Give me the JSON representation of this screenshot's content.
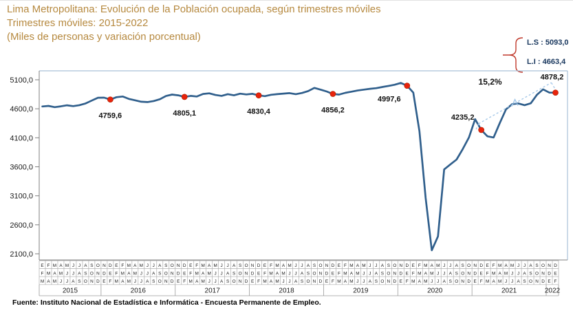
{
  "title": {
    "line1": "Lima Metropolitana: Evolución de la Población ocupada, según trimestres móviles",
    "line2": "Trimestres móviles: 2015-2022",
    "line3": "(Miles de personas y variación porcentual)"
  },
  "source": "Fuente: Instituto Nacional de Estadística e Informática - Encuesta Permanente de Empleo.",
  "chart_data": {
    "type": "line",
    "title": "Lima Metropolitana: Evolución de la Población ocupada, según trimestres móviles",
    "ylabel": "Miles de personas",
    "xlabel": "Trimestres móviles (años 2015-2022)",
    "ylim": [
      2100,
      5100
    ],
    "ytick_step": 500,
    "ytick_labels": [
      "5100,0",
      "4600,0",
      "4100,0",
      "3600,0",
      "3100,0",
      "2600,0",
      "2100,0"
    ],
    "grid": false,
    "legend_position": "top-right",
    "line_color": "#305F8C",
    "marker_color": "#E8230C",
    "bracket_color": "#9FC5E8",
    "years": [
      {
        "label": "2015",
        "quarters": [
          "EFM",
          "FMA",
          "MAM",
          "AMJ",
          "MJJ",
          "JJA",
          "JAS",
          "ASO",
          "SON",
          "OND"
        ],
        "values": [
          4640,
          4650,
          4628,
          4642,
          4660,
          4646,
          4663,
          4692,
          4742,
          4790
        ]
      },
      {
        "label": "2016",
        "quarters": [
          "NDE",
          "DEF",
          "EFM",
          "FMA",
          "MAM",
          "AMJ",
          "MJJ",
          "JJA",
          "JAS",
          "ASO",
          "SON",
          "OND"
        ],
        "values": [
          4792,
          4759.6,
          4800,
          4812,
          4770,
          4747,
          4722,
          4716,
          4734,
          4764,
          4820,
          4845
        ]
      },
      {
        "label": "2017",
        "quarters": [
          "NDE",
          "DEF",
          "EFM",
          "FMA",
          "MAM",
          "AMJ",
          "MJJ",
          "JJA",
          "JAS",
          "ASO",
          "SON",
          "OND"
        ],
        "values": [
          4832,
          4805.1,
          4822,
          4812,
          4856,
          4866,
          4838,
          4822,
          4852,
          4832,
          4860,
          4848
        ]
      },
      {
        "label": "2018",
        "quarters": [
          "NDE",
          "DEF",
          "EFM",
          "FMA",
          "MAM",
          "AMJ",
          "MJJ",
          "JJA",
          "JAS",
          "ASO",
          "SON",
          "OND"
        ],
        "values": [
          4858,
          4830.4,
          4818,
          4842,
          4852,
          4862,
          4870,
          4852,
          4872,
          4906,
          4960,
          4930
        ]
      },
      {
        "label": "2019",
        "quarters": [
          "NDE",
          "DEF",
          "EFM",
          "FMA",
          "MAM",
          "AMJ",
          "MJJ",
          "JJA",
          "JAS",
          "ASO",
          "SON",
          "OND"
        ],
        "values": [
          4898,
          4856.2,
          4845,
          4875,
          4895,
          4915,
          4930,
          4945,
          4955,
          4975,
          4995,
          5015
        ]
      },
      {
        "label": "2020",
        "quarters": [
          "NDE",
          "DEF",
          "EFM",
          "FMA",
          "MAM",
          "AMJ",
          "MJJ",
          "JJA",
          "JAS",
          "ASO",
          "SON",
          "OND"
        ],
        "values": [
          5045,
          4997.6,
          4880,
          4210,
          3060,
          2160,
          2400,
          3555,
          3640,
          3725,
          3905,
          4105
        ]
      },
      {
        "label": "2021",
        "quarters": [
          "NDE",
          "DEF",
          "EFM",
          "FMA",
          "MAM",
          "AMJ",
          "MJJ",
          "JJA",
          "JAS",
          "ASO",
          "SON",
          "OND"
        ],
        "values": [
          4420,
          4235.2,
          4125,
          4105,
          4355,
          4590,
          4680,
          4692,
          4662,
          4695,
          4840,
          4935
        ]
      },
      {
        "label": "2022",
        "quarters": [
          "NDE",
          "DEF"
        ],
        "values": [
          4880,
          4878.2
        ]
      }
    ],
    "labeled_points": [
      {
        "year": "2016",
        "quarter": "DEF",
        "label": "4759,6",
        "placement": "below"
      },
      {
        "year": "2017",
        "quarter": "DEF",
        "label": "4805,1",
        "placement": "below"
      },
      {
        "year": "2018",
        "quarter": "DEF",
        "label": "4830,4",
        "placement": "below"
      },
      {
        "year": "2019",
        "quarter": "DEF",
        "label": "4856,2",
        "placement": "below"
      },
      {
        "year": "2020",
        "quarter": "DEF",
        "label": "4997,6",
        "placement": "below-left"
      },
      {
        "year": "2021",
        "quarter": "DEF",
        "label": "4235,2",
        "placement": "above-left"
      },
      {
        "year": "2022",
        "quarter": "DEF",
        "label": "4878,2",
        "placement": "above"
      }
    ],
    "growth_annotation": {
      "label": "15,2%",
      "from": {
        "year": "2021",
        "quarter": "DEF"
      },
      "to": {
        "year": "2022",
        "quarter": "DEF"
      }
    },
    "confidence_bounds": {
      "upper_label": "L.S : 5093,0",
      "lower_label": "L.I :  4663,4",
      "upper": 5093.0,
      "lower": 4663.4
    }
  }
}
